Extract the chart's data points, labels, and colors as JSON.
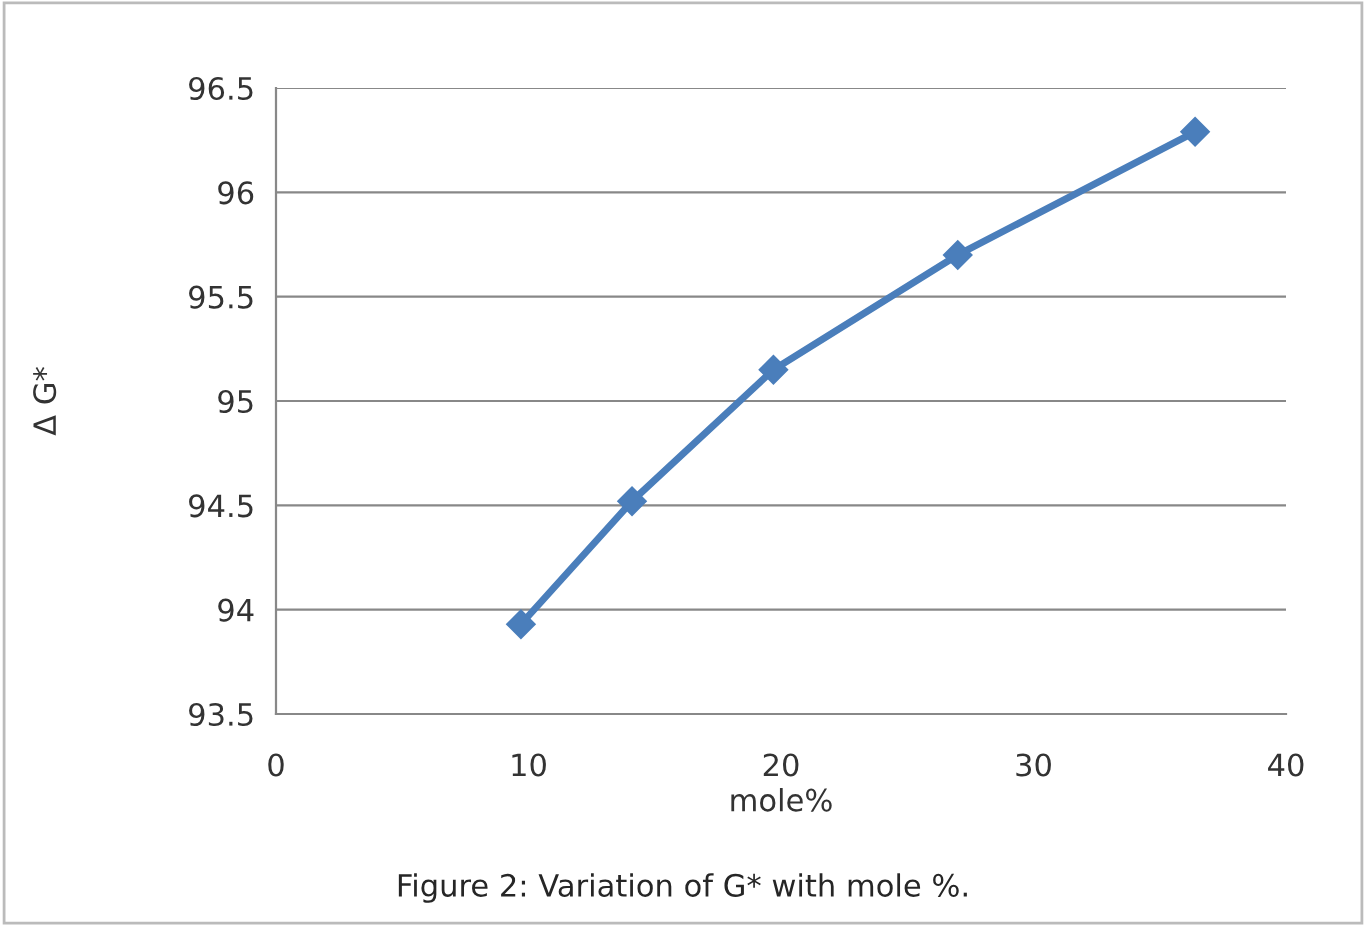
{
  "chart_data": {
    "type": "line",
    "xlabel": "mole%",
    "ylabel": "Δ G*",
    "annotations": [
      "Figure 2: Variation of G* with mole %."
    ],
    "x": [
      9.7,
      14.1,
      19.7,
      27.0,
      36.4
    ],
    "series": [
      {
        "color": "#4a7ebb",
        "values": [
          93.93,
          94.52,
          95.15,
          95.7,
          96.29
        ]
      }
    ],
    "xlim": [
      0,
      40
    ],
    "xticks": [
      0,
      10,
      20,
      30,
      40
    ],
    "ylim": [
      93.5,
      96.5
    ],
    "yticks": [
      93.5,
      94,
      94.5,
      95,
      95.5,
      96,
      96.5
    ],
    "grid": "y",
    "marker": "diamond",
    "line_style": "solid",
    "legend": false
  }
}
